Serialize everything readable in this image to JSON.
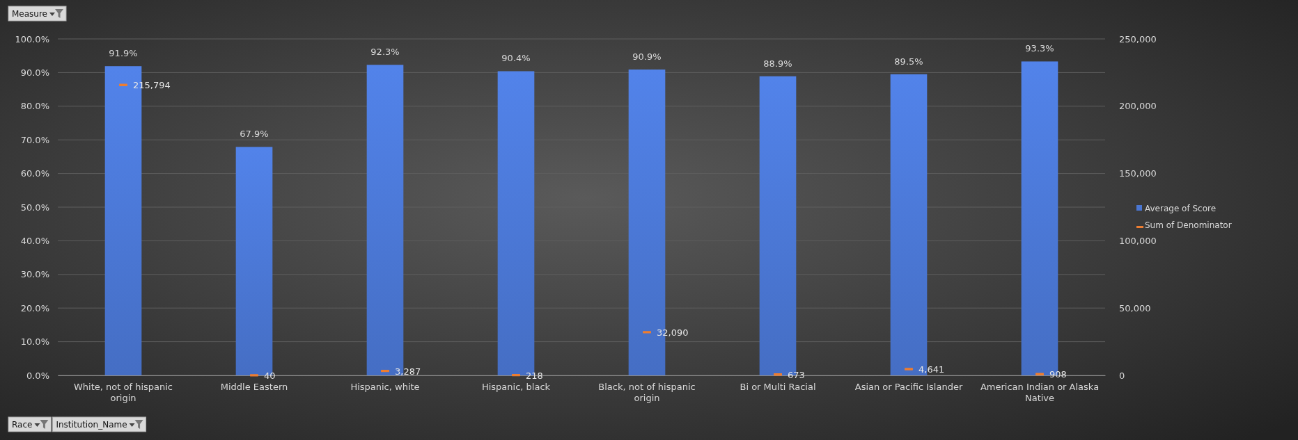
{
  "chart_data": {
    "type": "bar",
    "categories": [
      "White, not of hispanic origin",
      "Middle Eastern",
      "Hispanic, white",
      "Hispanic, black",
      "Black, not of hispanic origin",
      "Bi or Multi Racial",
      "Asian or Pacific Islander",
      "American Indian or Alaska Native"
    ],
    "series": [
      {
        "name": "Average of Score",
        "color": "#4a76d2",
        "values": [
          91.9,
          67.9,
          92.3,
          90.4,
          90.9,
          88.9,
          89.5,
          93.3
        ],
        "value_labels": [
          "91.9%",
          "67.9%",
          "92.3%",
          "90.4%",
          "90.9%",
          "88.9%",
          "89.5%",
          "93.3%"
        ]
      },
      {
        "name": "Sum of Denominator",
        "type": "scatter",
        "axis": "y2",
        "color": "#ed7d31",
        "values": [
          215794,
          40,
          3287,
          218,
          32090,
          673,
          4641,
          908
        ],
        "value_labels": [
          "215,794",
          "40",
          "3,287",
          "218",
          "32,090",
          "673",
          "4,641",
          "908"
        ]
      }
    ],
    "ylim": [
      0,
      100
    ],
    "yticks": [
      {
        "value": 0,
        "label": "0.0%"
      },
      {
        "value": 10,
        "label": "10.0%"
      },
      {
        "value": 20,
        "label": "20.0%"
      },
      {
        "value": 30,
        "label": "30.0%"
      },
      {
        "value": 40,
        "label": "40.0%"
      },
      {
        "value": 50,
        "label": "50.0%"
      },
      {
        "value": 60,
        "label": "60.0%"
      },
      {
        "value": 70,
        "label": "70.0%"
      },
      {
        "value": 80,
        "label": "80.0%"
      },
      {
        "value": 90,
        "label": "90.0%"
      },
      {
        "value": 100,
        "label": "100.0%"
      }
    ],
    "y2lim": [
      0,
      250000
    ],
    "y2ticks": [
      {
        "value": 0,
        "label": "0"
      },
      {
        "value": 50000,
        "label": "50,000"
      },
      {
        "value": 100000,
        "label": "100,000"
      },
      {
        "value": 150000,
        "label": "150,000"
      },
      {
        "value": 200000,
        "label": "200,000"
      },
      {
        "value": 250000,
        "label": "250,000"
      }
    ],
    "grid": "y",
    "legend": "right",
    "annotations": [
      "Measure",
      "Race",
      "Institution_Name"
    ]
  }
}
